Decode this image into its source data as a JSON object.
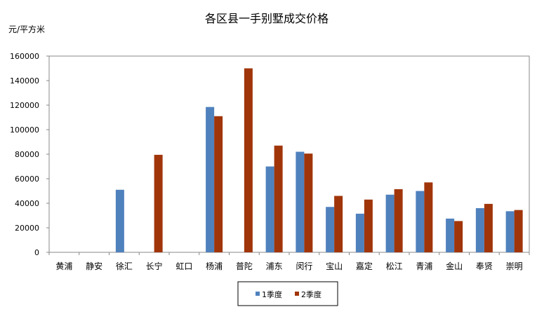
{
  "chart_data": {
    "type": "bar",
    "title": "各区县一手别墅成交价格",
    "ylabel": "元/平方米",
    "xlabel": "",
    "ylim": [
      0,
      160000
    ],
    "yticks": [
      0,
      20000,
      40000,
      60000,
      80000,
      100000,
      120000,
      140000,
      160000
    ],
    "grid": false,
    "legend_position": "bottom",
    "categories": [
      "黄浦",
      "静安",
      "徐汇",
      "长宁",
      "虹口",
      "杨浦",
      "普陀",
      "浦东",
      "闵行",
      "宝山",
      "嘉定",
      "松江",
      "青浦",
      "金山",
      "奉贤",
      "崇明"
    ],
    "series": [
      {
        "name": "1季度",
        "color": "#4F81BD",
        "values": [
          0,
          0,
          51000,
          0,
          0,
          118500,
          0,
          70000,
          82000,
          37000,
          31500,
          47000,
          50000,
          27500,
          36000,
          33500
        ]
      },
      {
        "name": "2季度",
        "color": "#A0350A",
        "values": [
          0,
          0,
          0,
          79500,
          0,
          111000,
          150000,
          87000,
          80500,
          46000,
          43000,
          51500,
          57000,
          25500,
          39500,
          34500
        ]
      }
    ]
  }
}
